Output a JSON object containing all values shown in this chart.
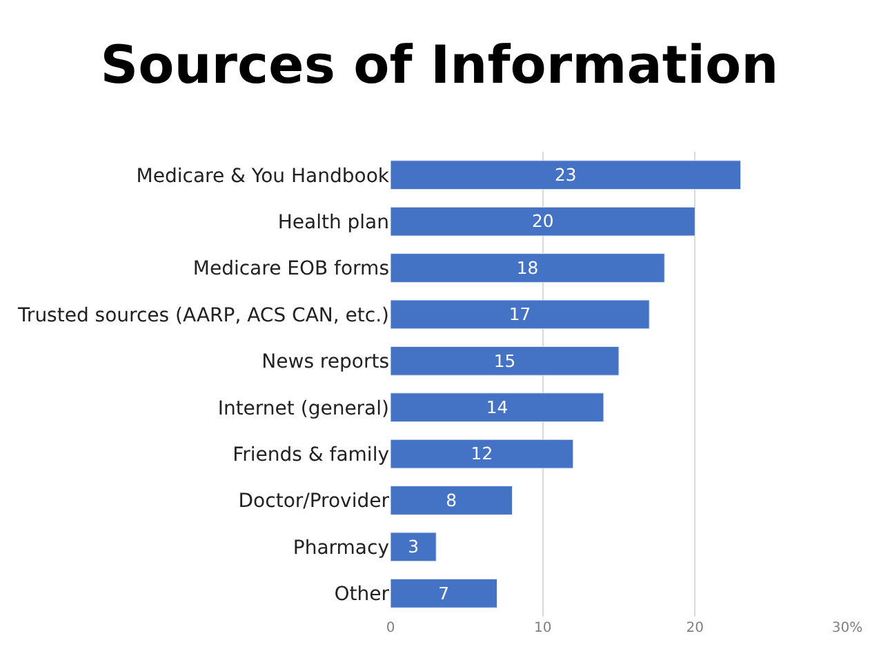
{
  "chart_data": {
    "type": "bar",
    "orientation": "horizontal",
    "title": "Sources of Information",
    "categories": [
      "Medicare & You Handbook",
      "Health plan",
      "Medicare EOB forms",
      "Trusted sources (AARP, ACS CAN, etc.)",
      "News reports",
      "Internet (general)",
      "Friends & family",
      "Doctor/Provider",
      "Pharmacy",
      "Other"
    ],
    "values": [
      23,
      20,
      18,
      17,
      15,
      14,
      12,
      8,
      3,
      7
    ],
    "color": "#4472c4",
    "xlim": [
      0,
      30
    ],
    "xticks": [
      0,
      10,
      20,
      {
        "value": 30,
        "label": "30%"
      }
    ],
    "grid": "x",
    "data_labels": true
  }
}
